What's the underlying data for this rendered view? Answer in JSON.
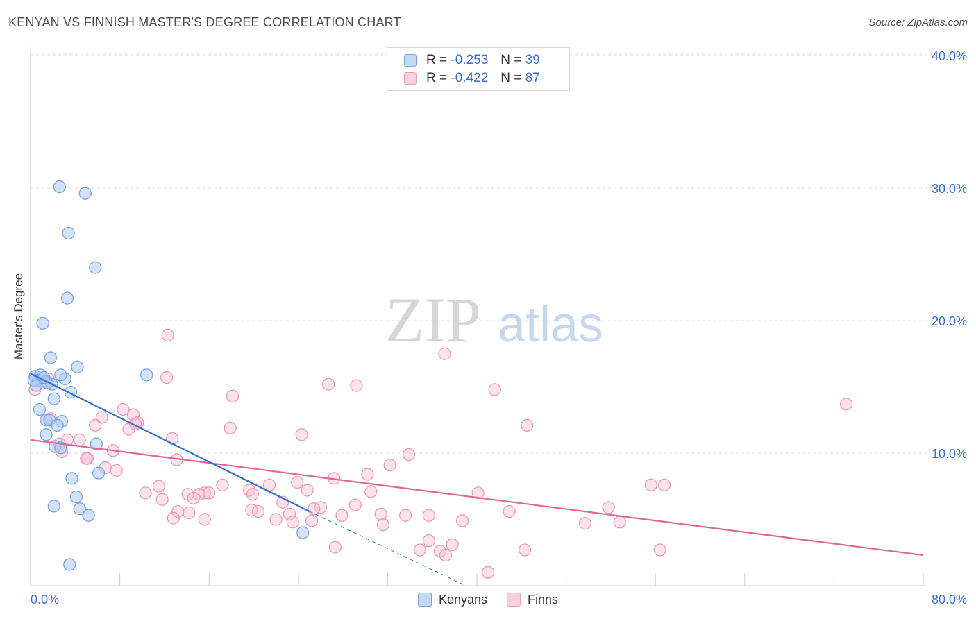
{
  "title": "KENYAN VS FINNISH MASTER'S DEGREE CORRELATION CHART",
  "source": "Source: ZipAtlas.com",
  "watermark": {
    "zip": "ZIP",
    "atlas": "atlas"
  },
  "legend": {
    "r_label": "R =",
    "n_label": "N =",
    "rows": [
      {
        "series": "Kenyans",
        "r": "-0.253",
        "n": "39"
      },
      {
        "series": "Finns",
        "r": "-0.422",
        "n": "87"
      }
    ]
  },
  "colors": {
    "kenyans_fill": "#aecbf0",
    "kenyans_stroke": "#6f9fe0",
    "kenyans_line": "#2f6fd1",
    "finns_fill": "#f7bfd2",
    "finns_stroke": "#ea93b2",
    "finns_line": "#e06593",
    "tick_label": "#3a6fc6",
    "grid": "#dddddd"
  },
  "chart_data": {
    "type": "scatter",
    "title": "KENYAN VS FINNISH MASTER'S DEGREE CORRELATION CHART",
    "ylabel": "Master's Degree",
    "xlim": [
      0,
      80
    ],
    "ylim": [
      0,
      40
    ],
    "x_tick_labels": [
      "0.0%",
      "80.0%"
    ],
    "y_ticks": [
      10,
      20,
      30,
      40
    ],
    "y_tick_labels": [
      "10.0%",
      "20.0%",
      "30.0%",
      "40.0%"
    ],
    "grid": true,
    "legend_position": "top-center",
    "series": [
      {
        "name": "Kenyans",
        "r": -0.253,
        "n": 39,
        "trend": {
          "x": [
            0,
            25
          ],
          "y": [
            16.0,
            5.6
          ],
          "dashed_to": [
            39,
            0
          ]
        },
        "points": [
          [
            2.6,
            30.1
          ],
          [
            4.9,
            29.6
          ],
          [
            3.4,
            26.6
          ],
          [
            5.8,
            24.0
          ],
          [
            3.3,
            21.7
          ],
          [
            1.1,
            19.8
          ],
          [
            1.8,
            17.2
          ],
          [
            4.2,
            16.5
          ],
          [
            10.4,
            15.9
          ],
          [
            0.4,
            15.8
          ],
          [
            0.9,
            15.9
          ],
          [
            0.7,
            15.5
          ],
          [
            3.1,
            15.6
          ],
          [
            2.7,
            15.9
          ],
          [
            1.4,
            15.4
          ],
          [
            0.3,
            15.5
          ],
          [
            1.9,
            15.2
          ],
          [
            1.5,
            15.3
          ],
          [
            3.6,
            14.6
          ],
          [
            2.1,
            14.1
          ],
          [
            0.8,
            13.3
          ],
          [
            1.4,
            12.5
          ],
          [
            2.8,
            12.4
          ],
          [
            1.7,
            12.5
          ],
          [
            2.4,
            12.1
          ],
          [
            1.4,
            11.4
          ],
          [
            5.9,
            10.7
          ],
          [
            2.2,
            10.5
          ],
          [
            2.7,
            10.4
          ],
          [
            6.1,
            8.5
          ],
          [
            3.7,
            8.1
          ],
          [
            4.1,
            6.7
          ],
          [
            2.1,
            6.0
          ],
          [
            4.4,
            5.8
          ],
          [
            5.2,
            5.3
          ],
          [
            24.4,
            4.0
          ],
          [
            3.5,
            1.6
          ],
          [
            0.5,
            15.1
          ],
          [
            1.2,
            15.7
          ]
        ]
      },
      {
        "name": "Finns",
        "r": -0.422,
        "n": 87,
        "trend": {
          "x": [
            0,
            80
          ],
          "y": [
            11.0,
            2.3
          ]
        },
        "points": [
          [
            0.4,
            14.8
          ],
          [
            1.6,
            15.6
          ],
          [
            12.2,
            15.7
          ],
          [
            12.3,
            18.9
          ],
          [
            37.1,
            17.5
          ],
          [
            26.7,
            15.2
          ],
          [
            29.2,
            15.1
          ],
          [
            41.6,
            14.8
          ],
          [
            18.1,
            14.3
          ],
          [
            73.1,
            13.7
          ],
          [
            8.3,
            13.3
          ],
          [
            9.2,
            12.9
          ],
          [
            6.4,
            12.7
          ],
          [
            1.8,
            12.6
          ],
          [
            9.6,
            12.3
          ],
          [
            5.8,
            12.1
          ],
          [
            44.5,
            12.1
          ],
          [
            8.8,
            11.8
          ],
          [
            17.9,
            11.9
          ],
          [
            24.3,
            11.4
          ],
          [
            12.7,
            11.1
          ],
          [
            3.3,
            11.0
          ],
          [
            4.4,
            11.0
          ],
          [
            2.6,
            10.7
          ],
          [
            7.4,
            10.2
          ],
          [
            2.8,
            10.1
          ],
          [
            33.9,
            9.9
          ],
          [
            5.1,
            9.6
          ],
          [
            13.1,
            9.5
          ],
          [
            32.2,
            9.1
          ],
          [
            6.7,
            8.9
          ],
          [
            7.7,
            8.7
          ],
          [
            30.2,
            8.4
          ],
          [
            27.2,
            8.1
          ],
          [
            23.9,
            7.8
          ],
          [
            21.4,
            7.6
          ],
          [
            11.5,
            7.5
          ],
          [
            17.2,
            7.6
          ],
          [
            55.6,
            7.6
          ],
          [
            56.8,
            7.6
          ],
          [
            19.6,
            7.2
          ],
          [
            24.8,
            7.2
          ],
          [
            10.3,
            7.0
          ],
          [
            15.6,
            7.0
          ],
          [
            16.0,
            7.0
          ],
          [
            40.1,
            7.0
          ],
          [
            30.5,
            7.1
          ],
          [
            14.1,
            6.9
          ],
          [
            15.1,
            6.9
          ],
          [
            19.9,
            6.9
          ],
          [
            14.6,
            6.6
          ],
          [
            11.8,
            6.5
          ],
          [
            22.6,
            6.3
          ],
          [
            29.1,
            6.1
          ],
          [
            26.0,
            5.9
          ],
          [
            25.4,
            5.8
          ],
          [
            51.8,
            5.9
          ],
          [
            42.9,
            5.6
          ],
          [
            13.2,
            5.6
          ],
          [
            19.8,
            5.7
          ],
          [
            20.4,
            5.6
          ],
          [
            14.2,
            5.5
          ],
          [
            23.2,
            5.4
          ],
          [
            31.4,
            5.4
          ],
          [
            33.6,
            5.3
          ],
          [
            35.7,
            5.3
          ],
          [
            27.9,
            5.3
          ],
          [
            12.8,
            5.1
          ],
          [
            15.6,
            5.0
          ],
          [
            22.0,
            5.0
          ],
          [
            23.5,
            4.8
          ],
          [
            25.2,
            4.9
          ],
          [
            38.7,
            4.9
          ],
          [
            31.6,
            4.6
          ],
          [
            52.8,
            4.8
          ],
          [
            49.7,
            4.7
          ],
          [
            35.7,
            3.4
          ],
          [
            37.8,
            3.1
          ],
          [
            27.3,
            2.9
          ],
          [
            34.9,
            2.7
          ],
          [
            36.7,
            2.6
          ],
          [
            37.2,
            2.3
          ],
          [
            44.3,
            2.7
          ],
          [
            56.4,
            2.7
          ],
          [
            41.0,
            1.0
          ],
          [
            5.0,
            9.6
          ],
          [
            9.4,
            12.2
          ]
        ]
      }
    ]
  }
}
